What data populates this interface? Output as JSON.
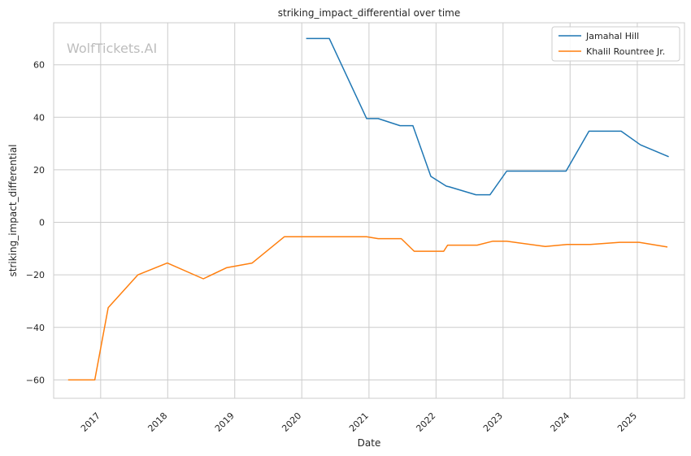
{
  "chart_data": {
    "type": "line",
    "title": "striking_impact_differential over time",
    "xlabel": "Date",
    "ylabel": "striking_impact_differential",
    "watermark": "WolfTickets.AI",
    "x_tick_labels": [
      "2017",
      "2018",
      "2019",
      "2020",
      "2021",
      "2022",
      "2023",
      "2024",
      "2025"
    ],
    "y_ticks": [
      -60,
      -40,
      -20,
      0,
      20,
      40,
      60
    ],
    "y_tick_labels": [
      "−60",
      "−40",
      "−20",
      "0",
      "20",
      "40",
      "60"
    ],
    "xlim": [
      "2016-04-20",
      "2025-09-15"
    ],
    "ylim": [
      -67,
      76
    ],
    "grid": true,
    "legend_position": "top-right",
    "series": [
      {
        "name": "Jamahal Hill",
        "color": "#1f77b4",
        "points": [
          {
            "x": "2020-01-25",
            "y": 70
          },
          {
            "x": "2020-05-30",
            "y": 70
          },
          {
            "x": "2020-12-19",
            "y": 39.5
          },
          {
            "x": "2021-02-20",
            "y": 39.5
          },
          {
            "x": "2021-06-19",
            "y": 36.8
          },
          {
            "x": "2021-08-28",
            "y": 36.8
          },
          {
            "x": "2021-12-04",
            "y": 17.5
          },
          {
            "x": "2022-02-26",
            "y": 13.8
          },
          {
            "x": "2022-03-15",
            "y": 13.5
          },
          {
            "x": "2022-08-06",
            "y": 10.5
          },
          {
            "x": "2022-10-22",
            "y": 10.5
          },
          {
            "x": "2023-01-21",
            "y": 19.5
          },
          {
            "x": "2023-12-10",
            "y": 19.5
          },
          {
            "x": "2024-04-13",
            "y": 34.7
          },
          {
            "x": "2024-10-05",
            "y": 34.7
          },
          {
            "x": "2025-01-18",
            "y": 29.5
          },
          {
            "x": "2025-06-21",
            "y": 25
          }
        ]
      },
      {
        "name": "Khalil Rountree Jr.",
        "color": "#ff7f0e",
        "points": [
          {
            "x": "2016-07-08",
            "y": -60
          },
          {
            "x": "2016-11-30",
            "y": -60
          },
          {
            "x": "2017-02-11",
            "y": -32.5
          },
          {
            "x": "2017-07-22",
            "y": -20
          },
          {
            "x": "2017-12-30",
            "y": -15.5
          },
          {
            "x": "2018-07-14",
            "y": -21.5
          },
          {
            "x": "2018-11-17",
            "y": -17.3
          },
          {
            "x": "2019-04-06",
            "y": -15.5
          },
          {
            "x": "2019-09-28",
            "y": -5.5
          },
          {
            "x": "2020-12-19",
            "y": -5.5
          },
          {
            "x": "2021-02-20",
            "y": -6.2
          },
          {
            "x": "2021-06-26",
            "y": -6.2
          },
          {
            "x": "2021-09-04",
            "y": -11
          },
          {
            "x": "2022-02-12",
            "y": -11
          },
          {
            "x": "2022-03-05",
            "y": -8.7
          },
          {
            "x": "2022-08-13",
            "y": -8.7
          },
          {
            "x": "2022-11-05",
            "y": -7.2
          },
          {
            "x": "2023-01-21",
            "y": -7.2
          },
          {
            "x": "2023-08-19",
            "y": -9.2
          },
          {
            "x": "2023-12-16",
            "y": -8.4
          },
          {
            "x": "2024-04-20",
            "y": -8.4
          },
          {
            "x": "2024-09-28",
            "y": -7.6
          },
          {
            "x": "2025-01-11",
            "y": -7.6
          },
          {
            "x": "2025-06-14",
            "y": -9.4
          }
        ]
      }
    ]
  }
}
